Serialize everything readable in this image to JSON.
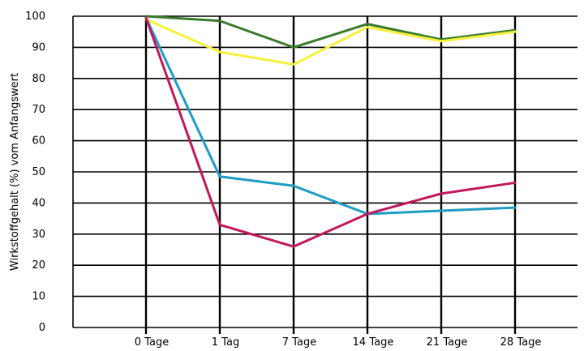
{
  "chart_data": {
    "type": "line",
    "title": "",
    "xlabel": "",
    "ylabel": "Wirkstoffgehalt (%) vom Anfangswert",
    "categories": [
      "0 Tage",
      "1 Tag",
      "7 Tage",
      "14 Tage",
      "21 Tage",
      "28 Tage"
    ],
    "ylim": [
      0,
      100
    ],
    "yticks": [
      "0",
      "10",
      "20",
      "30",
      "40",
      "50",
      "60",
      "70",
      "80",
      "90",
      "100"
    ],
    "grid": true,
    "legend": "none",
    "series": [
      {
        "color": "#3a7a2a",
        "values": [
          100,
          98.5,
          90,
          97.5,
          92.5,
          95.5
        ]
      },
      {
        "color": "#f5f03c",
        "values": [
          99,
          88.5,
          84.5,
          96.5,
          92,
          95
        ]
      },
      {
        "color": "#1e9cc4",
        "values": [
          99.5,
          48.5,
          45.5,
          36.5,
          37.5,
          38.5
        ]
      },
      {
        "color": "#c2185b",
        "values": [
          99.5,
          33,
          26,
          36.5,
          43,
          46.5
        ]
      }
    ]
  }
}
